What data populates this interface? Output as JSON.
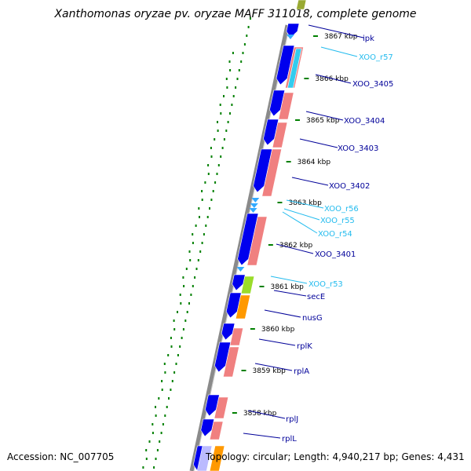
{
  "title": "Xanthomonas oryzae pv. oryzae MAFF 311018, complete genome",
  "accession": "Accession: NC_007705",
  "topology": "Topology: circular; Length: 4,940,217 bp; Genes: 4,431",
  "colors": {
    "cds_forward": "#0000ee",
    "cds_reverse": "#f08080",
    "rna": "#33ccee",
    "gc_dots": "#008000",
    "backbone": "#888888",
    "label_cds": "#000099",
    "label_rna": "#22bbee"
  },
  "ticks": [
    {
      "label": "3867 kbp"
    },
    {
      "label": "3866 kbp"
    },
    {
      "label": "3865 kbp"
    },
    {
      "label": "3864 kbp"
    },
    {
      "label": "3863 kbp"
    },
    {
      "label": "3862 kbp"
    },
    {
      "label": "3861 kbp"
    },
    {
      "label": "3860 kbp"
    },
    {
      "label": "3859 kbp"
    },
    {
      "label": "3858 kbp"
    }
  ],
  "genes": [
    {
      "name": "ipk",
      "kind": "cds"
    },
    {
      "name": "XOO_r57",
      "kind": "rna"
    },
    {
      "name": "XOO_3405",
      "kind": "cds"
    },
    {
      "name": "XOO_3404",
      "kind": "cds"
    },
    {
      "name": "XOO_3403",
      "kind": "cds"
    },
    {
      "name": "XOO_3402",
      "kind": "cds"
    },
    {
      "name": "XOO_r56",
      "kind": "rna"
    },
    {
      "name": "XOO_r55",
      "kind": "rna"
    },
    {
      "name": "XOO_r54",
      "kind": "rna"
    },
    {
      "name": "XOO_3401",
      "kind": "cds"
    },
    {
      "name": "XOO_r53",
      "kind": "rna"
    },
    {
      "name": "secE",
      "kind": "cds"
    },
    {
      "name": "nusG",
      "kind": "cds"
    },
    {
      "name": "rplK",
      "kind": "cds"
    },
    {
      "name": "rplA",
      "kind": "cds"
    },
    {
      "name": "rplJ",
      "kind": "cds"
    },
    {
      "name": "rplL",
      "kind": "cds"
    }
  ]
}
